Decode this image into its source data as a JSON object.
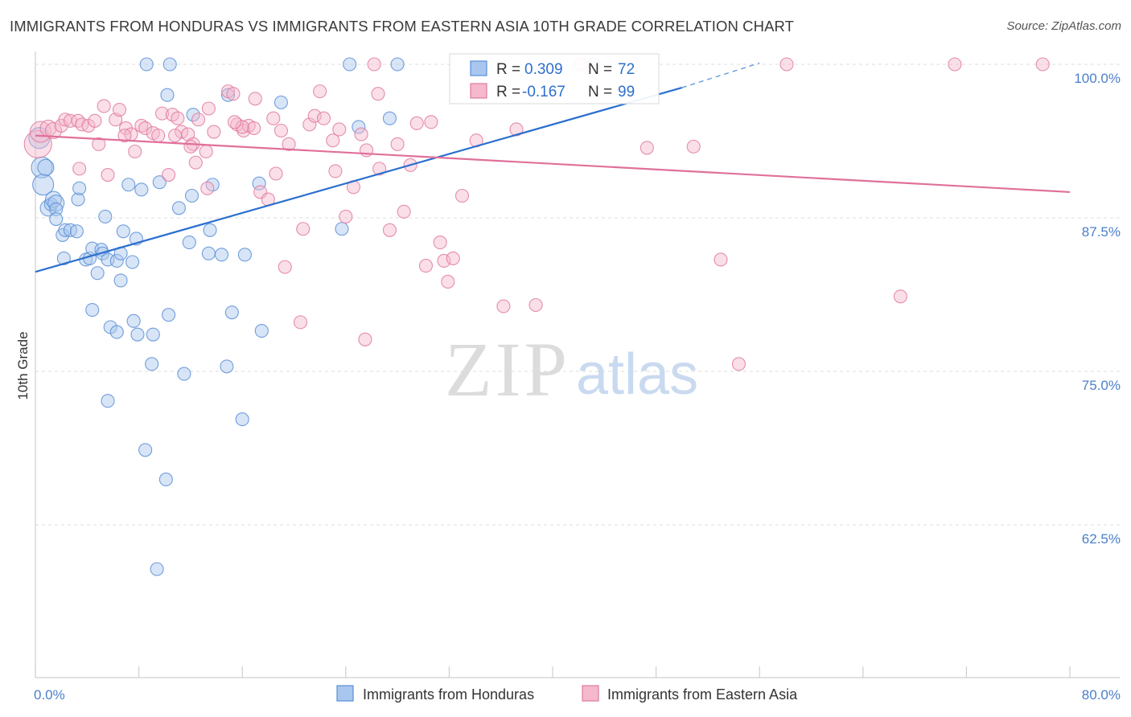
{
  "title": "IMMIGRANTS FROM HONDURAS VS IMMIGRANTS FROM EASTERN ASIA 10TH GRADE CORRELATION CHART",
  "source": "Source: ZipAtlas.com",
  "watermark": {
    "zip": "ZIP",
    "atlas": "atlas"
  },
  "colors": {
    "blue": "#5b8fd6",
    "blue_fill": "#a9c6ee",
    "pink": "#e07aa0",
    "pink_fill": "#f5b8cc",
    "blue_line": "#2a6fcf",
    "pink_line": "#e0709a",
    "tick_text": "#4a7fc9"
  },
  "stats": {
    "r_label": "R =",
    "n_label": "N =",
    "rows": [
      {
        "r": "0.309",
        "n": "72"
      },
      {
        "r": "-0.167",
        "n": "99"
      }
    ]
  },
  "chart_data": {
    "type": "scatter",
    "ylabel": "10th Grade",
    "xlabel": "",
    "xlim": [
      0,
      80
    ],
    "ylim": [
      53,
      102
    ],
    "x_tick_labels": [
      "0.0%",
      "80.0%"
    ],
    "y_ticks": [
      62.5,
      75.0,
      87.5,
      100.0
    ],
    "y_tick_labels": [
      "62.5%",
      "75.0%",
      "87.5%",
      "100.0%"
    ],
    "grid": "horizontal dashed",
    "legend_position": "bottom-center",
    "series": [
      {
        "name": "Immigrants from Honduras",
        "color": "blue",
        "trend": {
          "x": [
            0,
            50
          ],
          "y": [
            83.1,
            98.1
          ],
          "dashed_to": [
            56,
            100.1
          ]
        },
        "points": [
          [
            0.3,
            94.0,
            "l"
          ],
          [
            0.5,
            91.6,
            "l"
          ],
          [
            0.6,
            90.2,
            "l"
          ],
          [
            0.8,
            91.6,
            "m"
          ],
          [
            1.0,
            88.3,
            "m"
          ],
          [
            1.2,
            88.6,
            "s"
          ],
          [
            1.4,
            89.0,
            "m"
          ],
          [
            1.6,
            88.7,
            "m"
          ],
          [
            1.6,
            88.2,
            "s"
          ],
          [
            1.6,
            87.4,
            "s"
          ],
          [
            2.1,
            86.1,
            "s"
          ],
          [
            2.3,
            86.5,
            "s"
          ],
          [
            2.7,
            86.5,
            "s"
          ],
          [
            3.2,
            86.4,
            "s"
          ],
          [
            2.2,
            84.2,
            "s"
          ],
          [
            3.3,
            89.0,
            "s"
          ],
          [
            3.4,
            89.9,
            "s"
          ],
          [
            3.9,
            84.1,
            "s"
          ],
          [
            4.2,
            84.2,
            "s"
          ],
          [
            4.4,
            85.0,
            "s"
          ],
          [
            4.8,
            83.0,
            "s"
          ],
          [
            5.1,
            84.9,
            "s"
          ],
          [
            5.2,
            84.6,
            "s"
          ],
          [
            5.4,
            87.6,
            "s"
          ],
          [
            5.6,
            84.1,
            "s"
          ],
          [
            6.3,
            84.0,
            "s"
          ],
          [
            6.6,
            84.6,
            "s"
          ],
          [
            6.6,
            82.4,
            "s"
          ],
          [
            6.8,
            86.4,
            "s"
          ],
          [
            7.2,
            90.2,
            "s"
          ],
          [
            7.5,
            83.9,
            "s"
          ],
          [
            7.8,
            85.8,
            "s"
          ],
          [
            8.2,
            89.8,
            "s"
          ],
          [
            9.6,
            90.4,
            "s"
          ],
          [
            10.2,
            97.5,
            "s"
          ],
          [
            11.1,
            88.3,
            "s"
          ],
          [
            11.9,
            85.5,
            "s"
          ],
          [
            12.1,
            89.3,
            "s"
          ],
          [
            12.2,
            95.9,
            "s"
          ],
          [
            13.5,
            86.5,
            "s"
          ],
          [
            13.4,
            84.6,
            "s"
          ],
          [
            14.4,
            84.5,
            "s"
          ],
          [
            14.9,
            97.5,
            "s"
          ],
          [
            17.3,
            90.3,
            "s"
          ],
          [
            19.0,
            96.9,
            "s"
          ],
          [
            23.7,
            86.6,
            "s"
          ],
          [
            25.0,
            94.9,
            "s"
          ],
          [
            27.4,
            95.6,
            "s"
          ],
          [
            28.0,
            100.0,
            "s"
          ],
          [
            8.6,
            100.0,
            "s"
          ],
          [
            10.4,
            100.0,
            "s"
          ],
          [
            24.3,
            100.0,
            "s"
          ],
          [
            43.2,
            100.0,
            "s"
          ],
          [
            4.4,
            80.0,
            "s"
          ],
          [
            5.8,
            78.6,
            "s"
          ],
          [
            6.3,
            78.2,
            "s"
          ],
          [
            7.6,
            79.1,
            "s"
          ],
          [
            7.9,
            78.0,
            "s"
          ],
          [
            9.1,
            78.0,
            "s"
          ],
          [
            10.3,
            79.6,
            "s"
          ],
          [
            9.0,
            75.6,
            "s"
          ],
          [
            11.5,
            74.8,
            "s"
          ],
          [
            14.8,
            75.4,
            "s"
          ],
          [
            15.2,
            79.8,
            "s"
          ],
          [
            17.5,
            78.3,
            "s"
          ],
          [
            5.6,
            72.6,
            "s"
          ],
          [
            16.0,
            71.1,
            "s"
          ],
          [
            8.5,
            68.6,
            "s"
          ],
          [
            10.1,
            66.2,
            "s"
          ],
          [
            9.4,
            58.9,
            "s"
          ],
          [
            16.2,
            84.5,
            "s"
          ],
          [
            13.7,
            90.2,
            "s"
          ]
        ]
      },
      {
        "name": "Immigrants from Eastern Asia",
        "color": "pink",
        "trend": {
          "x": [
            0,
            80
          ],
          "y": [
            94.2,
            89.6
          ]
        },
        "points": [
          [
            0.2,
            93.5,
            "xl"
          ],
          [
            0.4,
            94.5,
            "l"
          ],
          [
            1.0,
            94.8,
            "m"
          ],
          [
            1.4,
            94.6,
            "m"
          ],
          [
            2.0,
            95.0,
            "s"
          ],
          [
            2.3,
            95.5,
            "s"
          ],
          [
            2.7,
            95.4,
            "s"
          ],
          [
            3.3,
            95.4,
            "s"
          ],
          [
            3.6,
            95.1,
            "s"
          ],
          [
            4.1,
            95.0,
            "s"
          ],
          [
            4.6,
            95.4,
            "s"
          ],
          [
            3.4,
            91.5,
            "s"
          ],
          [
            4.9,
            93.5,
            "s"
          ],
          [
            5.3,
            96.6,
            "s"
          ],
          [
            5.6,
            91.0,
            "s"
          ],
          [
            6.2,
            95.5,
            "s"
          ],
          [
            6.5,
            96.3,
            "s"
          ],
          [
            7.0,
            94.8,
            "s"
          ],
          [
            7.4,
            94.3,
            "s"
          ],
          [
            7.7,
            92.9,
            "s"
          ],
          [
            8.2,
            95.0,
            "s"
          ],
          [
            8.5,
            94.8,
            "s"
          ],
          [
            9.1,
            94.4,
            "s"
          ],
          [
            9.5,
            94.2,
            "s"
          ],
          [
            9.8,
            96.0,
            "s"
          ],
          [
            10.3,
            91.0,
            "s"
          ],
          [
            10.6,
            95.9,
            "s"
          ],
          [
            11.0,
            95.6,
            "s"
          ],
          [
            11.3,
            94.5,
            "s"
          ],
          [
            11.8,
            94.3,
            "s"
          ],
          [
            12.2,
            93.5,
            "s"
          ],
          [
            12.4,
            92.0,
            "s"
          ],
          [
            12.6,
            95.5,
            "s"
          ],
          [
            13.2,
            92.9,
            "s"
          ],
          [
            13.4,
            96.4,
            "s"
          ],
          [
            13.8,
            94.5,
            "s"
          ],
          [
            14.9,
            97.8,
            "s"
          ],
          [
            15.3,
            97.6,
            "s"
          ],
          [
            15.6,
            95.1,
            "s"
          ],
          [
            16.1,
            94.6,
            "s"
          ],
          [
            16.5,
            95.0,
            "s"
          ],
          [
            16.9,
            94.8,
            "s"
          ],
          [
            17.0,
            97.2,
            "s"
          ],
          [
            17.4,
            89.6,
            "s"
          ],
          [
            18.4,
            95.6,
            "s"
          ],
          [
            18.6,
            91.1,
            "s"
          ],
          [
            19.0,
            94.6,
            "s"
          ],
          [
            19.6,
            93.5,
            "s"
          ],
          [
            20.7,
            86.6,
            "s"
          ],
          [
            21.2,
            95.1,
            "s"
          ],
          [
            21.6,
            95.8,
            "s"
          ],
          [
            22.3,
            95.6,
            "s"
          ],
          [
            22.0,
            97.8,
            "s"
          ],
          [
            23.0,
            93.8,
            "s"
          ],
          [
            23.2,
            91.3,
            "s"
          ],
          [
            23.5,
            94.7,
            "s"
          ],
          [
            24.0,
            87.6,
            "s"
          ],
          [
            24.6,
            90.0,
            "s"
          ],
          [
            25.2,
            94.3,
            "s"
          ],
          [
            25.6,
            93.0,
            "s"
          ],
          [
            26.5,
            97.6,
            "s"
          ],
          [
            26.6,
            91.5,
            "s"
          ],
          [
            26.2,
            100.0,
            "s"
          ],
          [
            27.4,
            86.5,
            "s"
          ],
          [
            28.0,
            93.5,
            "s"
          ],
          [
            28.5,
            88.0,
            "s"
          ],
          [
            29.0,
            91.8,
            "s"
          ],
          [
            29.5,
            95.2,
            "s"
          ],
          [
            30.6,
            95.3,
            "s"
          ],
          [
            31.3,
            85.5,
            "s"
          ],
          [
            31.6,
            84.0,
            "s"
          ],
          [
            31.9,
            82.3,
            "s"
          ],
          [
            32.3,
            84.2,
            "s"
          ],
          [
            33.0,
            89.3,
            "s"
          ],
          [
            34.1,
            93.8,
            "s"
          ],
          [
            36.2,
            80.3,
            "s"
          ],
          [
            37.2,
            94.7,
            "s"
          ],
          [
            38.7,
            80.4,
            "s"
          ],
          [
            42.2,
            100.0,
            "s"
          ],
          [
            46.2,
            100.0,
            "s"
          ],
          [
            47.3,
            93.2,
            "s"
          ],
          [
            50.9,
            93.3,
            "s"
          ],
          [
            53.0,
            84.1,
            "s"
          ],
          [
            54.4,
            75.6,
            "s"
          ],
          [
            58.1,
            100.0,
            "s"
          ],
          [
            66.9,
            81.1,
            "s"
          ],
          [
            71.1,
            100.0,
            "s"
          ],
          [
            77.9,
            100.0,
            "s"
          ],
          [
            19.3,
            83.5,
            "s"
          ],
          [
            20.5,
            79.0,
            "s"
          ],
          [
            25.5,
            77.6,
            "s"
          ],
          [
            30.2,
            83.6,
            "s"
          ],
          [
            16.0,
            94.9,
            "s"
          ],
          [
            15.4,
            95.3,
            "s"
          ],
          [
            13.3,
            89.9,
            "s"
          ],
          [
            18.0,
            89.0,
            "s"
          ],
          [
            12.0,
            93.3,
            "s"
          ],
          [
            10.8,
            94.2,
            "s"
          ],
          [
            6.9,
            94.2,
            "s"
          ]
        ]
      }
    ]
  }
}
